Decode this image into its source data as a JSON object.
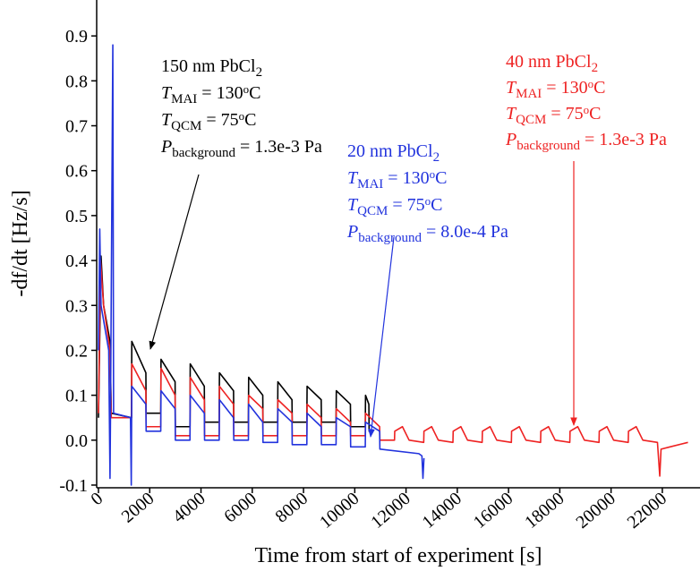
{
  "chart_data": {
    "type": "line",
    "x_label": "Time from start of experiment [s]",
    "y_label": "-df/dt [Hz/s]",
    "xlim": [
      -70,
      23470
    ],
    "ylim": [
      -0.106,
      0.98
    ],
    "xticks": [
      0,
      2000,
      4000,
      6000,
      8000,
      10000,
      12000,
      14000,
      16000,
      18000,
      20000,
      22000
    ],
    "yticks": [
      -0.1,
      {
        "value": 0,
        "label": "0.0"
      },
      0.1,
      0.2,
      0.3,
      0.4,
      0.5,
      0.6,
      0.7,
      0.8,
      0.9
    ],
    "series": [
      {
        "name": "150 nm PbCl2",
        "color": "#000000",
        "x": [
          0,
          100,
          200,
          450,
          500,
          1290,
          1300,
          1850,
          1860,
          2430,
          2440,
          2990,
          3000,
          3570,
          3580,
          4130,
          4140,
          4710,
          4720,
          5270,
          5280,
          5850,
          5860,
          6410,
          6420,
          6990,
          7000,
          7550,
          7560,
          8130,
          8140,
          8690,
          8700,
          9270,
          9280,
          9830,
          9840,
          10410,
          10420,
          10550,
          10560,
          10650
        ],
        "values": [
          0.05,
          0.41,
          0.3,
          0.22,
          0.06,
          0.05,
          0.22,
          0.15,
          0.06,
          0.06,
          0.18,
          0.13,
          0.03,
          0.03,
          0.17,
          0.12,
          0.04,
          0.04,
          0.15,
          0.11,
          0.04,
          0.04,
          0.14,
          0.1,
          0.04,
          0.04,
          0.13,
          0.09,
          0.04,
          0.04,
          0.12,
          0.09,
          0.04,
          0.04,
          0.11,
          0.08,
          0.03,
          0.03,
          0.1,
          0.08,
          0.02,
          0.02
        ]
      },
      {
        "name": "40 nm PbCl2",
        "color": "#ee2222",
        "x": [
          0,
          80,
          200,
          450,
          500,
          1290,
          1300,
          1850,
          1860,
          2430,
          2440,
          2990,
          3000,
          3570,
          3580,
          4130,
          4140,
          4710,
          4720,
          5270,
          5280,
          5850,
          5860,
          6410,
          6420,
          6990,
          7000,
          7550,
          7560,
          8130,
          8140,
          8690,
          8700,
          9270,
          9280,
          9830,
          9840,
          10410,
          10420,
          10970,
          10980,
          11550,
          11560,
          11860,
          12120,
          12690,
          12700,
          13000,
          13260,
          13830,
          13840,
          14140,
          14400,
          14970,
          14980,
          15280,
          15540,
          16110,
          16120,
          16420,
          16680,
          17250,
          17260,
          17560,
          17820,
          18390,
          18400,
          18700,
          18960,
          19530,
          19540,
          19840,
          20100,
          20670,
          20680,
          20980,
          21240,
          21810,
          21900,
          21950,
          22300,
          23000
        ],
        "values": [
          0.06,
          0.4,
          0.3,
          0.2,
          0.05,
          0.05,
          0.17,
          0.11,
          0.03,
          0.03,
          0.16,
          0.1,
          0.01,
          0.01,
          0.14,
          0.09,
          0.01,
          0.01,
          0.12,
          0.08,
          0.01,
          0.01,
          0.1,
          0.07,
          0.01,
          0.01,
          0.09,
          0.06,
          0.01,
          0.01,
          0.08,
          0.05,
          0.01,
          0.01,
          0.07,
          0.04,
          0.01,
          0.01,
          0.06,
          0.03,
          0,
          0,
          0.02,
          0.03,
          0,
          -0.005,
          0.02,
          0.03,
          0,
          -0.005,
          0.02,
          0.03,
          0,
          -0.005,
          0.02,
          0.03,
          0,
          -0.005,
          0.02,
          0.03,
          0,
          -0.005,
          0.02,
          0.03,
          0,
          -0.005,
          0.02,
          0.03,
          0,
          -0.005,
          0.02,
          0.03,
          0,
          -0.005,
          0.02,
          0.03,
          0,
          -0.005,
          -0.08,
          -0.02,
          -0.015,
          -0.005
        ]
      },
      {
        "name": "20 nm PbCl2",
        "color": "#2233dd",
        "x": [
          0,
          50,
          100,
          400,
          450,
          470,
          560,
          590,
          1250,
          1280,
          1300,
          1850,
          1860,
          2430,
          2440,
          2990,
          3000,
          3570,
          3580,
          4130,
          4140,
          4710,
          4720,
          5270,
          5280,
          5850,
          5860,
          6410,
          6420,
          6990,
          7000,
          7550,
          7560,
          8130,
          8140,
          8690,
          8700,
          9270,
          9280,
          9830,
          9840,
          10410,
          10420,
          10970,
          10980,
          12500,
          12620,
          12660,
          12700
        ],
        "values": [
          0.2,
          0.47,
          0.3,
          0.2,
          -0.085,
          0.06,
          0.88,
          0.06,
          0.05,
          -0.1,
          0.12,
          0.08,
          0.02,
          0.02,
          0.11,
          0.07,
          0,
          0,
          0.1,
          0.06,
          0,
          0,
          0.09,
          0.05,
          0,
          0,
          0.08,
          0.04,
          -0.005,
          -0.005,
          0.07,
          0.04,
          -0.01,
          -0.01,
          0.06,
          0.03,
          -0.01,
          -0.01,
          0.05,
          0.03,
          -0.015,
          -0.015,
          0.04,
          0.02,
          -0.02,
          -0.03,
          -0.035,
          -0.085,
          -0.04
        ]
      }
    ],
    "annotations": [
      {
        "color": "#000000",
        "lines": [
          [
            {
              "text": "150 nm PbCl"
            },
            {
              "text": "2",
              "script": "sub"
            }
          ],
          [
            {
              "text": "T",
              "italic": true
            },
            {
              "text": "MAI",
              "script": "sub"
            },
            {
              "text": " = 130"
            },
            {
              "text": "o",
              "script": "sup"
            },
            {
              "text": "C"
            }
          ],
          [
            {
              "text": "T",
              "italic": true
            },
            {
              "text": "QCM",
              "script": "sub"
            },
            {
              "text": " = 75"
            },
            {
              "text": "o",
              "script": "sup"
            },
            {
              "text": "C"
            }
          ],
          [
            {
              "text": "P",
              "italic": true
            },
            {
              "text": "background",
              "script": "sub"
            },
            {
              "text": " = 1.3e-3 Pa"
            }
          ]
        ]
      },
      {
        "color": "#2233dd",
        "lines": [
          [
            {
              "text": "20 nm PbCl"
            },
            {
              "text": "2",
              "script": "sub"
            }
          ],
          [
            {
              "text": "T",
              "italic": true
            },
            {
              "text": "MAI",
              "script": "sub"
            },
            {
              "text": " = 130"
            },
            {
              "text": "o",
              "script": "sup"
            },
            {
              "text": "C"
            }
          ],
          [
            {
              "text": "T",
              "italic": true
            },
            {
              "text": "QCM",
              "script": "sub"
            },
            {
              "text": " = 75"
            },
            {
              "text": "o",
              "script": "sup"
            },
            {
              "text": "C"
            }
          ],
          [
            {
              "text": "P",
              "italic": true
            },
            {
              "text": "background",
              "script": "sub"
            },
            {
              "text": " = 8.0e-4 Pa"
            }
          ]
        ]
      },
      {
        "color": "#ee2222",
        "lines": [
          [
            {
              "text": "40 nm PbCl"
            },
            {
              "text": "2",
              "script": "sub"
            }
          ],
          [
            {
              "text": "T",
              "italic": true
            },
            {
              "text": "MAI",
              "script": "sub"
            },
            {
              "text": " = 130"
            },
            {
              "text": "o",
              "script": "sup"
            },
            {
              "text": "C"
            }
          ],
          [
            {
              "text": "T",
              "italic": true
            },
            {
              "text": "QCM",
              "script": "sub"
            },
            {
              "text": " = 75"
            },
            {
              "text": "o",
              "script": "sup"
            },
            {
              "text": "C"
            }
          ],
          [
            {
              "text": "P",
              "italic": true
            },
            {
              "text": "background",
              "script": "sub"
            },
            {
              "text": " = 1.3e-3 Pa"
            }
          ]
        ]
      }
    ]
  }
}
